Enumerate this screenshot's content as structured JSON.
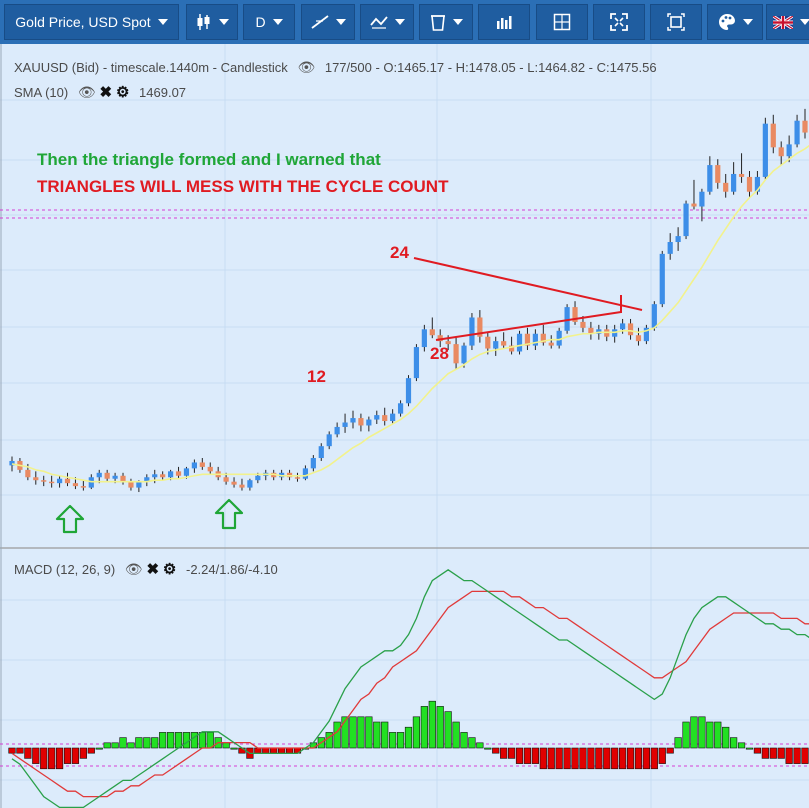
{
  "toolbar": {
    "instrument_label": "Gold Price, USD Spot",
    "timeframe_label": "D",
    "language_flag": "🇬🇧"
  },
  "chart_info": {
    "symbol_line": "XAUUSD (Bid) - timescale.1440m - Candlestick",
    "bars_count": "177/500",
    "ohlc": "- O:1465.17 - H:1478.05 - L:1464.82 - C:1475.56",
    "sma_label": "SMA (10)",
    "sma_value": "1469.07",
    "macd_label": "MACD (12, 26, 9)",
    "macd_value": "-2.24/1.86/-4.10"
  },
  "annotations": {
    "note_line1": "Then the triangle formed and I warned that",
    "note_line2": "TRIANGLES WILL MESS WITH THE CYCLE COUNT",
    "label_12": "12",
    "label_24": "24",
    "label_28": "28"
  },
  "colors": {
    "background": "#dcebfb",
    "toolbar": "#2b6fb6",
    "bull_candle": "#3d8ee8",
    "bear_candle": "#e98a62",
    "sma_line": "#f2f28c",
    "macd_line": "#2aa04a",
    "signal_line": "#e03a3a",
    "hist_pos": "#22e022",
    "hist_neg": "#e00000",
    "annotation_red": "#e01b22",
    "annotation_green": "#1fa637",
    "level_line": "#d63fd6"
  },
  "icons": [
    "chevron-down-icon",
    "candlestick-icon",
    "trendline-icon",
    "drawing-tools-icon",
    "trash-icon",
    "bar-chart-icon",
    "crosshair-icon",
    "fullscreen-icon",
    "fit-icon",
    "palette-icon",
    "uk-flag-icon",
    "eye-icon",
    "close-icon",
    "gear-icon",
    "up-arrow-icon"
  ],
  "chart_data": {
    "type": "candlestick",
    "series": [
      {
        "name": "XAUUSD",
        "ohlc": [
          [
            1465,
            1471,
            1461,
            1468
          ],
          [
            1468,
            1470,
            1460,
            1462
          ],
          [
            1462,
            1466,
            1455,
            1457
          ],
          [
            1457,
            1461,
            1452,
            1455
          ],
          [
            1455,
            1458,
            1451,
            1454
          ],
          [
            1454,
            1458,
            1450,
            1453
          ],
          [
            1453,
            1458,
            1450,
            1456
          ],
          [
            1456,
            1460,
            1451,
            1453
          ],
          [
            1453,
            1457,
            1449,
            1451
          ],
          [
            1451,
            1455,
            1448,
            1450
          ],
          [
            1450,
            1459,
            1449,
            1457
          ],
          [
            1457,
            1462,
            1453,
            1460
          ],
          [
            1460,
            1462,
            1454,
            1456
          ],
          [
            1456,
            1460,
            1453,
            1458
          ],
          [
            1458,
            1460,
            1452,
            1454
          ],
          [
            1454,
            1456,
            1448,
            1450
          ],
          [
            1450,
            1455,
            1447,
            1454
          ],
          [
            1454,
            1459,
            1451,
            1457
          ],
          [
            1457,
            1462,
            1453,
            1459
          ],
          [
            1459,
            1461,
            1455,
            1457
          ],
          [
            1457,
            1462,
            1455,
            1461
          ],
          [
            1461,
            1464,
            1456,
            1458
          ],
          [
            1458,
            1464,
            1456,
            1463
          ],
          [
            1463,
            1469,
            1460,
            1467
          ],
          [
            1467,
            1470,
            1462,
            1464
          ],
          [
            1464,
            1467,
            1459,
            1461
          ],
          [
            1461,
            1464,
            1455,
            1457
          ],
          [
            1457,
            1460,
            1452,
            1454
          ],
          [
            1454,
            1457,
            1450,
            1452
          ],
          [
            1452,
            1456,
            1448,
            1450
          ],
          [
            1450,
            1456,
            1448,
            1455
          ],
          [
            1455,
            1460,
            1453,
            1458
          ],
          [
            1458,
            1462,
            1455,
            1460
          ],
          [
            1460,
            1462,
            1455,
            1457
          ],
          [
            1457,
            1462,
            1455,
            1460
          ],
          [
            1460,
            1462,
            1455,
            1457
          ],
          [
            1457,
            1460,
            1454,
            1456
          ],
          [
            1456,
            1465,
            1455,
            1463
          ],
          [
            1463,
            1472,
            1461,
            1470
          ],
          [
            1470,
            1480,
            1468,
            1478
          ],
          [
            1478,
            1488,
            1476,
            1486
          ],
          [
            1486,
            1494,
            1484,
            1491
          ],
          [
            1491,
            1500,
            1487,
            1494
          ],
          [
            1494,
            1502,
            1490,
            1497
          ],
          [
            1497,
            1500,
            1488,
            1492
          ],
          [
            1492,
            1498,
            1488,
            1496
          ],
          [
            1496,
            1502,
            1493,
            1499
          ],
          [
            1499,
            1504,
            1492,
            1495
          ],
          [
            1495,
            1503,
            1493,
            1500
          ],
          [
            1500,
            1509,
            1498,
            1507
          ],
          [
            1507,
            1526,
            1505,
            1524
          ],
          [
            1524,
            1547,
            1522,
            1545
          ],
          [
            1545,
            1560,
            1542,
            1557
          ],
          [
            1557,
            1565,
            1551,
            1553
          ],
          [
            1553,
            1557,
            1545,
            1549
          ],
          [
            1549,
            1553,
            1543,
            1547
          ],
          [
            1547,
            1552,
            1530,
            1534
          ],
          [
            1534,
            1548,
            1531,
            1546
          ],
          [
            1546,
            1568,
            1543,
            1565
          ],
          [
            1565,
            1570,
            1548,
            1552
          ],
          [
            1552,
            1555,
            1540,
            1544
          ],
          [
            1544,
            1552,
            1539,
            1549
          ],
          [
            1549,
            1555,
            1544,
            1546
          ],
          [
            1546,
            1552,
            1540,
            1542
          ],
          [
            1542,
            1556,
            1540,
            1554
          ],
          [
            1554,
            1558,
            1543,
            1546
          ],
          [
            1546,
            1557,
            1543,
            1554
          ],
          [
            1554,
            1560,
            1546,
            1548
          ],
          [
            1548,
            1553,
            1544,
            1546
          ],
          [
            1546,
            1558,
            1544,
            1556
          ],
          [
            1556,
            1574,
            1554,
            1572
          ],
          [
            1572,
            1576,
            1560,
            1562
          ],
          [
            1562,
            1566,
            1555,
            1558
          ],
          [
            1558,
            1562,
            1550,
            1554
          ],
          [
            1554,
            1560,
            1550,
            1557
          ],
          [
            1557,
            1560,
            1549,
            1552
          ],
          [
            1552,
            1560,
            1548,
            1557
          ],
          [
            1557,
            1564,
            1554,
            1561
          ],
          [
            1561,
            1564,
            1550,
            1553
          ],
          [
            1553,
            1558,
            1546,
            1549
          ],
          [
            1549,
            1560,
            1547,
            1558
          ],
          [
            1558,
            1576,
            1556,
            1574
          ],
          [
            1574,
            1610,
            1572,
            1608
          ],
          [
            1608,
            1622,
            1604,
            1616
          ],
          [
            1616,
            1626,
            1610,
            1620
          ],
          [
            1620,
            1644,
            1618,
            1642
          ],
          [
            1642,
            1658,
            1638,
            1640
          ],
          [
            1640,
            1652,
            1630,
            1650
          ],
          [
            1650,
            1674,
            1648,
            1668
          ],
          [
            1668,
            1672,
            1652,
            1656
          ],
          [
            1656,
            1662,
            1646,
            1650
          ],
          [
            1650,
            1670,
            1648,
            1662
          ],
          [
            1662,
            1676,
            1656,
            1660
          ],
          [
            1660,
            1664,
            1646,
            1650
          ],
          [
            1650,
            1664,
            1648,
            1660
          ],
          [
            1660,
            1700,
            1658,
            1696
          ],
          [
            1696,
            1702,
            1676,
            1680
          ],
          [
            1680,
            1684,
            1668,
            1674
          ],
          [
            1674,
            1688,
            1670,
            1682
          ],
          [
            1682,
            1702,
            1680,
            1698
          ],
          [
            1698,
            1706,
            1686,
            1690
          ]
        ]
      },
      {
        "name": "SMA (10)",
        "values": [
          1466,
          1465,
          1464,
          1462,
          1461,
          1459,
          1458,
          1457,
          1456,
          1455,
          1454,
          1454,
          1454,
          1454,
          1454,
          1454,
          1454,
          1454,
          1455,
          1455,
          1456,
          1456,
          1457,
          1458,
          1459,
          1459,
          1459,
          1459,
          1459,
          1459,
          1459,
          1459,
          1459,
          1459,
          1458,
          1458,
          1458,
          1458,
          1460,
          1462,
          1465,
          1469,
          1473,
          1477,
          1480,
          1484,
          1487,
          1490,
          1493,
          1496,
          1500,
          1505,
          1511,
          1517,
          1522,
          1527,
          1530,
          1533,
          1537,
          1540,
          1542,
          1543,
          1544,
          1545,
          1546,
          1547,
          1548,
          1549,
          1550,
          1550,
          1552,
          1553,
          1554,
          1554,
          1555,
          1555,
          1555,
          1556,
          1556,
          1555,
          1556,
          1558,
          1563,
          1569,
          1575,
          1583,
          1591,
          1599,
          1608,
          1617,
          1625,
          1633,
          1640,
          1646,
          1651,
          1658,
          1664,
          1668,
          1672,
          1676,
          1679,
          1683
        ]
      },
      {
        "name": "MACD",
        "values": [
          -2,
          -3,
          -5,
          -7,
          -9,
          -10,
          -11,
          -11,
          -11,
          -11,
          -10,
          -9,
          -8,
          -7,
          -6,
          -6,
          -5,
          -4,
          -3,
          -2,
          -1,
          0,
          1,
          2,
          3,
          3,
          3,
          2,
          1,
          0,
          -1,
          -1,
          -1,
          -1,
          -1,
          -1,
          -1,
          0,
          1,
          3,
          5,
          8,
          11,
          13,
          15,
          16,
          17,
          18,
          18,
          19,
          21,
          24,
          28,
          31,
          32,
          33,
          32,
          31,
          31,
          30,
          29,
          28,
          27,
          26,
          25,
          24,
          23,
          22,
          21,
          20,
          20,
          19,
          18,
          17,
          16,
          15,
          14,
          13,
          12,
          11,
          10,
          9,
          10,
          13,
          17,
          21,
          24,
          26,
          27,
          28,
          28,
          27,
          26,
          25,
          24,
          23,
          23,
          22,
          22,
          21,
          21,
          20
        ]
      },
      {
        "name": "Signal",
        "values": [
          -1,
          -2,
          -3,
          -4,
          -5,
          -6,
          -7,
          -8,
          -8,
          -9,
          -9,
          -9,
          -9,
          -8,
          -8,
          -7,
          -7,
          -6,
          -5,
          -5,
          -4,
          -3,
          -2,
          -1,
          0,
          0,
          1,
          1,
          1,
          1,
          1,
          0,
          0,
          0,
          0,
          0,
          0,
          0,
          0,
          1,
          2,
          3,
          5,
          7,
          9,
          10,
          12,
          13,
          15,
          16,
          17,
          18,
          20,
          22,
          24,
          26,
          27,
          28,
          29,
          29,
          29,
          29,
          29,
          28,
          28,
          27,
          26,
          26,
          25,
          24,
          24,
          23,
          22,
          21,
          20,
          19,
          18,
          17,
          16,
          15,
          14,
          13,
          13,
          14,
          15,
          16,
          18,
          20,
          22,
          23,
          24,
          25,
          25,
          25,
          25,
          25,
          25,
          24,
          24,
          24,
          23,
          23
        ]
      },
      {
        "name": "Histogram",
        "values": [
          -1,
          -1,
          -2,
          -3,
          -4,
          -4,
          -4,
          -3,
          -3,
          -2,
          -1,
          0,
          1,
          1,
          2,
          1,
          2,
          2,
          2,
          3,
          3,
          3,
          3,
          3,
          3,
          3,
          2,
          1,
          0,
          -1,
          -2,
          -1,
          -1,
          -1,
          -1,
          -1,
          -1,
          0,
          1,
          2,
          3,
          5,
          6,
          6,
          6,
          6,
          5,
          5,
          3,
          3,
          4,
          6,
          8,
          9,
          8,
          7,
          5,
          3,
          2,
          1,
          0,
          -1,
          -2,
          -2,
          -3,
          -3,
          -3,
          -4,
          -4,
          -4,
          -4,
          -4,
          -4,
          -4,
          -4,
          -4,
          -4,
          -4,
          -4,
          -4,
          -4,
          -4,
          -3,
          -1,
          2,
          5,
          6,
          6,
          5,
          5,
          4,
          2,
          1,
          0,
          -1,
          -2,
          -2,
          -2,
          -3,
          -3,
          -3,
          -3
        ]
      }
    ],
    "macd_label": "MACD (12, 26, 9)",
    "sma_label": "SMA (10)",
    "grid": true
  }
}
